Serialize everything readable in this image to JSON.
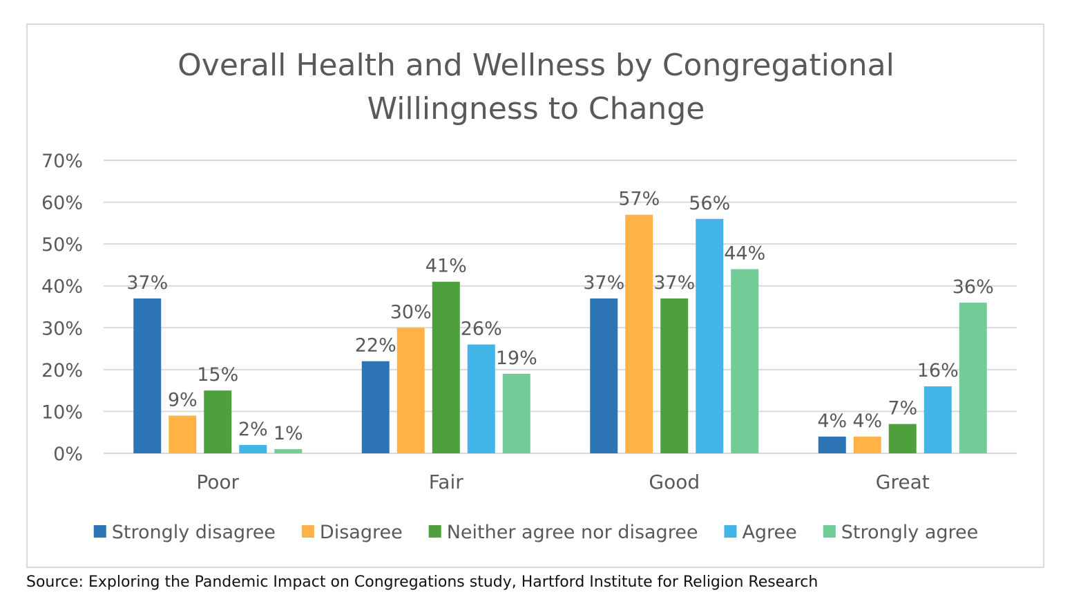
{
  "colors": {
    "strongly_disagree": "#2e75b6",
    "disagree": "#ffb347",
    "neither": "#4ea03c",
    "agree": "#41b6e6",
    "strongly_agree": "#72cc98",
    "text": "#595959",
    "grid": "#d9d9d9"
  },
  "source": "Source: Exploring the Pandemic Impact on Congregations study, Hartford Institute for Religion Research",
  "chart_data": {
    "type": "bar",
    "title": "Overall Health and Wellness by Congregational Willingness to Change",
    "title_lines": [
      "Overall Health and Wellness by Congregational",
      "Willingness to Change"
    ],
    "xlabel": "",
    "ylabel": "",
    "categories": [
      "Poor",
      "Fair",
      "Good",
      "Great"
    ],
    "ylim": [
      0,
      70
    ],
    "yticks": [
      "0%",
      "10%",
      "20%",
      "30%",
      "40%",
      "50%",
      "60%",
      "70%"
    ],
    "grid": true,
    "legend_position": "bottom",
    "series": [
      {
        "name": "Strongly disagree",
        "color": "#2e75b6",
        "values": [
          37,
          22,
          37,
          4
        ],
        "labels": [
          "37%",
          "22%",
          "37%",
          "4%"
        ]
      },
      {
        "name": "Disagree",
        "color": "#ffb347",
        "values": [
          9,
          30,
          57,
          4
        ],
        "labels": [
          "9%",
          "30%",
          "57%",
          "4%"
        ]
      },
      {
        "name": "Neither agree nor disagree",
        "color": "#4ea03c",
        "values": [
          15,
          41,
          37,
          7
        ],
        "labels": [
          "15%",
          "41%",
          "37%",
          "7%"
        ]
      },
      {
        "name": "Agree",
        "color": "#41b6e6",
        "values": [
          2,
          26,
          56,
          16
        ],
        "labels": [
          "2%",
          "26%",
          "56%",
          "16%"
        ]
      },
      {
        "name": "Strongly agree",
        "color": "#72cc98",
        "values": [
          1,
          19,
          44,
          36
        ],
        "labels": [
          "1%",
          "19%",
          "44%",
          "36%"
        ]
      }
    ]
  }
}
